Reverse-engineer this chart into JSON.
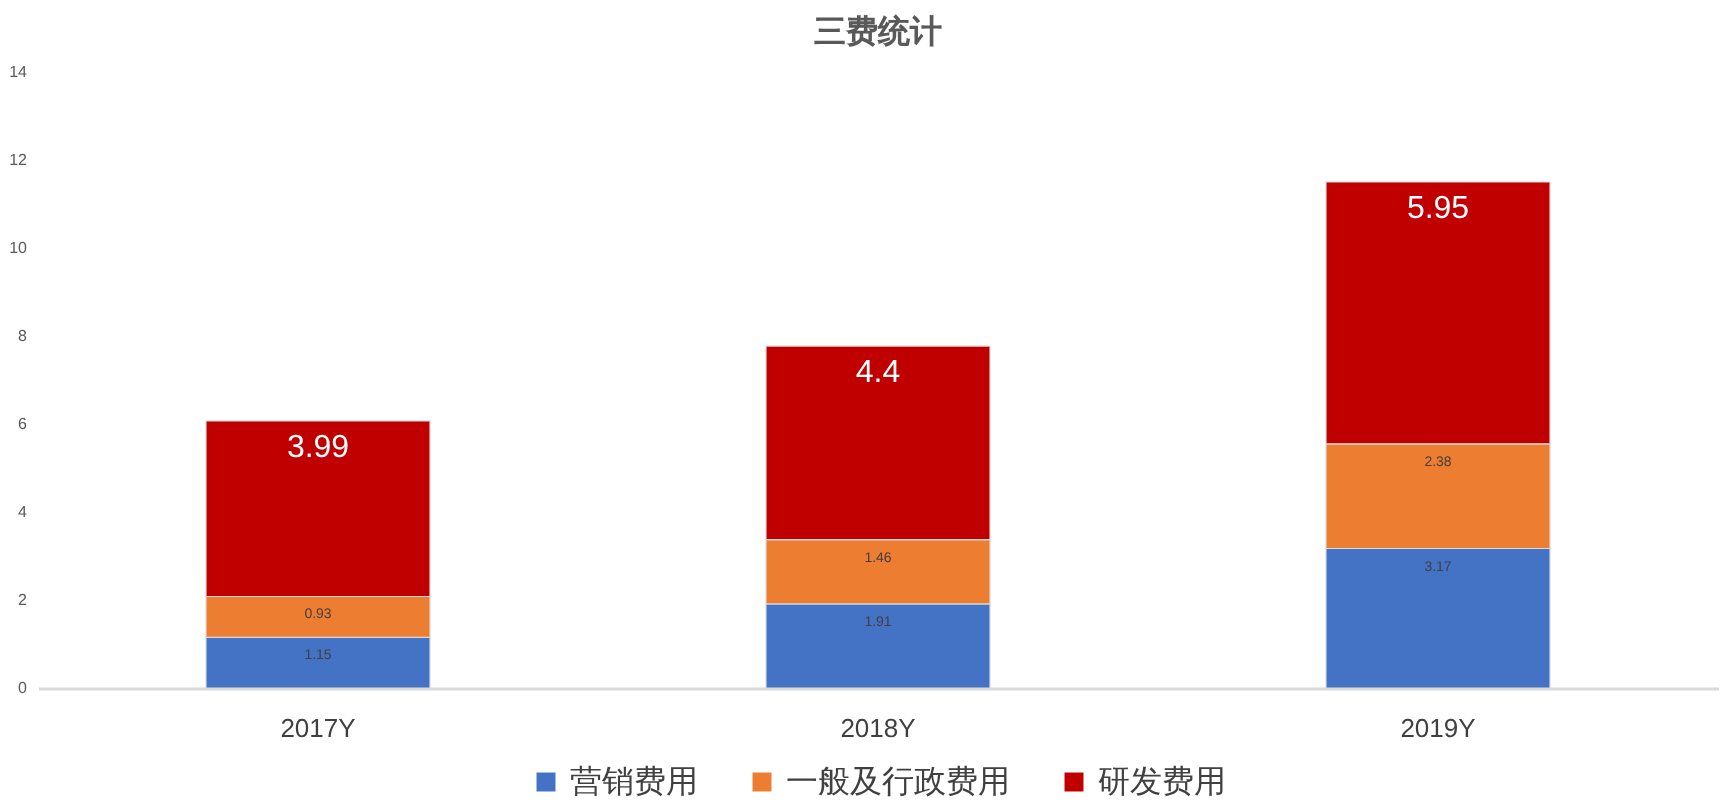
{
  "chart_data": {
    "type": "bar",
    "title": "三费统计",
    "categories": [
      "2017Y",
      "2018Y",
      "2019Y"
    ],
    "stacked": true,
    "series": [
      {
        "name": "营销费用",
        "color": "#4472c4",
        "values": [
          1.15,
          1.91,
          3.17
        ]
      },
      {
        "name": "一般及行政费用",
        "color": "#ed7d31",
        "values": [
          0.93,
          1.46,
          2.38
        ]
      },
      {
        "name": "研发费用",
        "color": "#c00000",
        "values": [
          3.99,
          4.4,
          5.95
        ]
      }
    ],
    "ylim": [
      0,
      14
    ],
    "yticks": [
      0,
      2,
      4,
      6,
      8,
      10,
      12,
      14
    ],
    "grid": false,
    "legend": "bottom",
    "data_labels": true
  }
}
